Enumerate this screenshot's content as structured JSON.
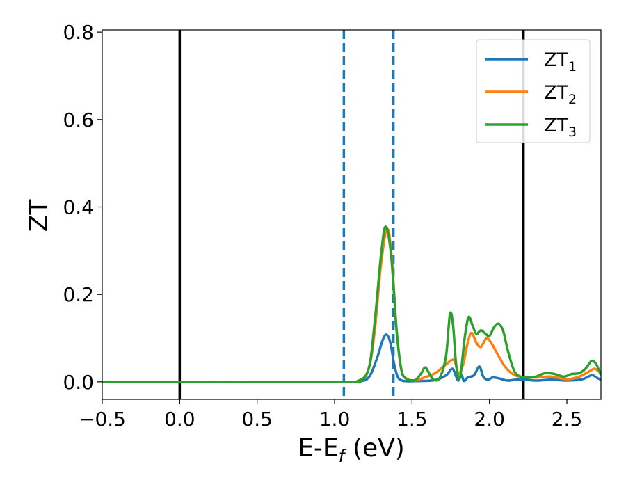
{
  "chart_data": {
    "type": "line",
    "title": "",
    "xlabel": {
      "main": "E-E",
      "sub": "f",
      "unit": " (eV)"
    },
    "ylabel": "ZT",
    "xlim": [
      -0.5,
      2.72
    ],
    "ylim": [
      -0.04,
      0.805
    ],
    "x_ticks": [
      -0.5,
      0.0,
      0.5,
      1.0,
      1.5,
      2.0,
      2.5
    ],
    "x_tick_labels": [
      "−0.5",
      "0.0",
      "0.5",
      "1.0",
      "1.5",
      "2.0",
      "2.5"
    ],
    "y_ticks": [
      0.0,
      0.2,
      0.4,
      0.6,
      0.8
    ],
    "y_tick_labels": [
      "0.0",
      "0.2",
      "0.4",
      "0.6",
      "0.8"
    ],
    "grid": false,
    "legend_position": "top-right",
    "vertical_lines": [
      {
        "x": 0.0,
        "style": "solid",
        "color": "#000000"
      },
      {
        "x": 1.06,
        "style": "dashed",
        "color": "#1f77b4"
      },
      {
        "x": 1.38,
        "style": "dashed",
        "color": "#1f77b4"
      },
      {
        "x": 2.22,
        "style": "solid",
        "color": "#000000"
      }
    ],
    "series": [
      {
        "name": "ZT",
        "name_sub": "1",
        "color": "#1f77b4",
        "points": [
          [
            -0.5,
            0
          ],
          [
            1.0,
            0
          ],
          [
            1.15,
            0.001
          ],
          [
            1.22,
            0.01
          ],
          [
            1.27,
            0.05
          ],
          [
            1.31,
            0.095
          ],
          [
            1.335,
            0.108
          ],
          [
            1.36,
            0.09
          ],
          [
            1.385,
            0.04
          ],
          [
            1.41,
            0.01
          ],
          [
            1.45,
            0.002
          ],
          [
            1.55,
            0.002
          ],
          [
            1.65,
            0.004
          ],
          [
            1.72,
            0.015
          ],
          [
            1.76,
            0.03
          ],
          [
            1.785,
            0.012
          ],
          [
            1.8,
            0.003
          ],
          [
            1.82,
            0.015
          ],
          [
            1.835,
            0.002
          ],
          [
            1.86,
            0.01
          ],
          [
            1.9,
            0.015
          ],
          [
            1.935,
            0.035
          ],
          [
            1.96,
            0.012
          ],
          [
            1.99,
            0.005
          ],
          [
            2.02,
            0.01
          ],
          [
            2.06,
            0.008
          ],
          [
            2.12,
            0.003
          ],
          [
            2.2,
            0.006
          ],
          [
            2.3,
            0.003
          ],
          [
            2.4,
            0.005
          ],
          [
            2.5,
            0.003
          ],
          [
            2.6,
            0.006
          ],
          [
            2.66,
            0.015
          ],
          [
            2.7,
            0.008
          ],
          [
            2.72,
            0.005
          ]
        ]
      },
      {
        "name": "ZT",
        "name_sub": "2",
        "color": "#ff7f0e",
        "points": [
          [
            -0.5,
            0
          ],
          [
            1.0,
            0
          ],
          [
            1.15,
            0.002
          ],
          [
            1.22,
            0.03
          ],
          [
            1.26,
            0.12
          ],
          [
            1.3,
            0.27
          ],
          [
            1.34,
            0.35
          ],
          [
            1.37,
            0.28
          ],
          [
            1.4,
            0.12
          ],
          [
            1.43,
            0.03
          ],
          [
            1.46,
            0.008
          ],
          [
            1.52,
            0.003
          ],
          [
            1.58,
            0.01
          ],
          [
            1.65,
            0.02
          ],
          [
            1.72,
            0.04
          ],
          [
            1.77,
            0.05
          ],
          [
            1.8,
            0.02
          ],
          [
            1.83,
            0.04
          ],
          [
            1.86,
            0.09
          ],
          [
            1.885,
            0.112
          ],
          [
            1.915,
            0.09
          ],
          [
            1.945,
            0.08
          ],
          [
            1.98,
            0.1
          ],
          [
            2.01,
            0.09
          ],
          [
            2.05,
            0.065
          ],
          [
            2.1,
            0.035
          ],
          [
            2.15,
            0.018
          ],
          [
            2.2,
            0.012
          ],
          [
            2.3,
            0.01
          ],
          [
            2.4,
            0.012
          ],
          [
            2.5,
            0.006
          ],
          [
            2.58,
            0.012
          ],
          [
            2.65,
            0.025
          ],
          [
            2.68,
            0.03
          ],
          [
            2.72,
            0.02
          ]
        ]
      },
      {
        "name": "ZT",
        "name_sub": "3",
        "color": "#2ca02c",
        "points": [
          [
            -0.5,
            0
          ],
          [
            1.0,
            0
          ],
          [
            1.15,
            0.002
          ],
          [
            1.22,
            0.03
          ],
          [
            1.26,
            0.14
          ],
          [
            1.3,
            0.29
          ],
          [
            1.33,
            0.355
          ],
          [
            1.365,
            0.29
          ],
          [
            1.4,
            0.12
          ],
          [
            1.43,
            0.03
          ],
          [
            1.46,
            0.008
          ],
          [
            1.52,
            0.004
          ],
          [
            1.56,
            0.02
          ],
          [
            1.585,
            0.033
          ],
          [
            1.61,
            0.02
          ],
          [
            1.64,
            0.005
          ],
          [
            1.68,
            0.01
          ],
          [
            1.72,
            0.06
          ],
          [
            1.745,
            0.155
          ],
          [
            1.765,
            0.13
          ],
          [
            1.785,
            0.04
          ],
          [
            1.81,
            0.01
          ],
          [
            1.84,
            0.1
          ],
          [
            1.865,
            0.148
          ],
          [
            1.89,
            0.13
          ],
          [
            1.915,
            0.11
          ],
          [
            1.945,
            0.118
          ],
          [
            1.975,
            0.11
          ],
          [
            2.0,
            0.105
          ],
          [
            2.03,
            0.125
          ],
          [
            2.06,
            0.133
          ],
          [
            2.09,
            0.115
          ],
          [
            2.12,
            0.07
          ],
          [
            2.16,
            0.025
          ],
          [
            2.2,
            0.012
          ],
          [
            2.25,
            0.01
          ],
          [
            2.3,
            0.012
          ],
          [
            2.36,
            0.02
          ],
          [
            2.42,
            0.018
          ],
          [
            2.48,
            0.012
          ],
          [
            2.53,
            0.018
          ],
          [
            2.58,
            0.02
          ],
          [
            2.62,
            0.03
          ],
          [
            2.66,
            0.048
          ],
          [
            2.69,
            0.04
          ],
          [
            2.72,
            0.015
          ]
        ]
      }
    ]
  }
}
